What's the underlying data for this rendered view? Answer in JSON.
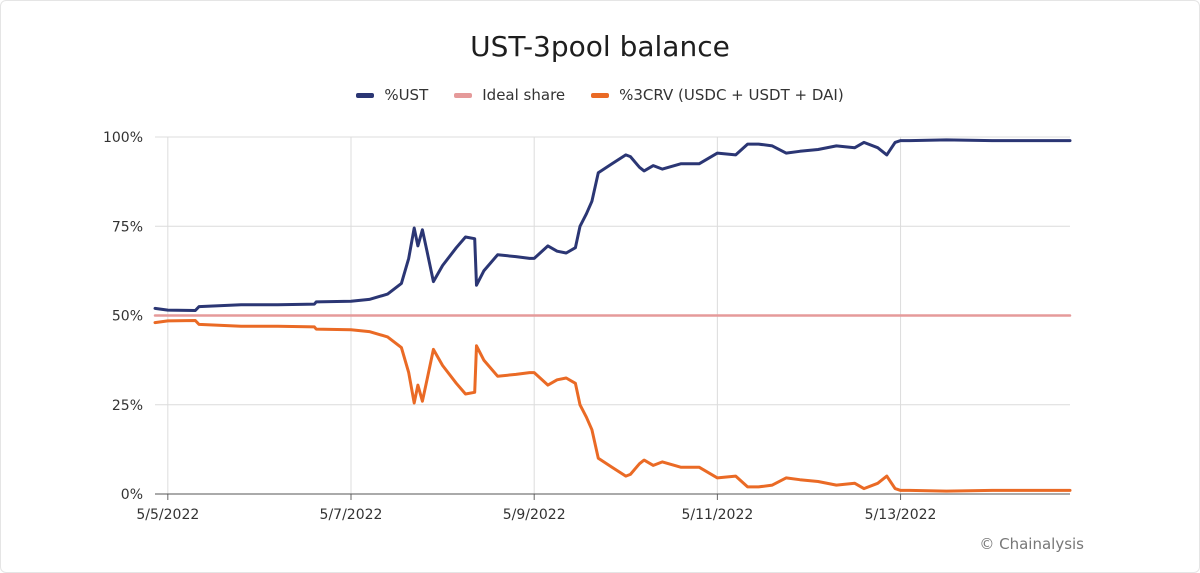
{
  "watermark": "© Chainalysis",
  "colors": {
    "ust": "#2b3674",
    "ideal": "#e59a9a",
    "crv": "#ea6a25",
    "grid": "#dcdcdc"
  },
  "chart_data": {
    "type": "line",
    "title": "UST-3pool balance",
    "xlabel": "",
    "ylabel": "",
    "x_unit": "days since 5/5/2022",
    "xlim": [
      -0.14,
      9.85
    ],
    "ylim": [
      0,
      100
    ],
    "x_ticks": [
      {
        "x": 0,
        "label": "5/5/2022"
      },
      {
        "x": 2,
        "label": "5/7/2022"
      },
      {
        "x": 4,
        "label": "5/9/2022"
      },
      {
        "x": 6,
        "label": "5/11/2022"
      },
      {
        "x": 8,
        "label": "5/13/2022"
      }
    ],
    "y_ticks": [
      {
        "y": 0,
        "label": "0%"
      },
      {
        "y": 25,
        "label": "25%"
      },
      {
        "y": 50,
        "label": "50%"
      },
      {
        "y": 75,
        "label": "75%"
      },
      {
        "y": 100,
        "label": "100%"
      }
    ],
    "grid": true,
    "legend_position": "top-center",
    "series": [
      {
        "name": "%UST",
        "color": "#2b3674",
        "x": [
          -0.3,
          0.0,
          0.3,
          0.34,
          0.8,
          1.2,
          1.6,
          1.62,
          2.0,
          2.2,
          2.4,
          2.55,
          2.63,
          2.69,
          2.73,
          2.78,
          2.83,
          2.9,
          3.0,
          3.15,
          3.25,
          3.35,
          3.37,
          3.45,
          3.6,
          3.8,
          3.95,
          4.0,
          4.15,
          4.25,
          4.35,
          4.45,
          4.5,
          4.57,
          4.63,
          4.7,
          4.85,
          5.0,
          5.05,
          5.15,
          5.2,
          5.3,
          5.4,
          5.6,
          5.8,
          6.0,
          6.2,
          6.33,
          6.45,
          6.6,
          6.75,
          6.9,
          7.1,
          7.3,
          7.5,
          7.6,
          7.75,
          7.85,
          7.94,
          8.0,
          8.1,
          8.5,
          9.0,
          9.5,
          9.85
        ],
        "values": [
          52.0,
          51.5,
          51.4,
          52.5,
          53.0,
          53.0,
          53.2,
          53.8,
          54.0,
          54.5,
          56.0,
          59.0,
          66.0,
          74.5,
          69.5,
          74.0,
          68.0,
          59.5,
          64.0,
          69.0,
          72.0,
          71.5,
          58.5,
          62.5,
          67.0,
          66.5,
          66.0,
          66.0,
          69.5,
          68.0,
          67.5,
          69.0,
          75.0,
          78.5,
          82.0,
          90.0,
          92.5,
          95.0,
          94.5,
          91.5,
          90.5,
          92.0,
          91.0,
          92.5,
          92.5,
          95.5,
          95.0,
          98.0,
          98.0,
          97.5,
          95.5,
          96.0,
          96.5,
          97.5,
          97.0,
          98.5,
          97.0,
          95.0,
          98.5,
          99.0,
          99.0,
          99.2,
          99.0,
          99.0,
          99.0
        ]
      },
      {
        "name": "Ideal share",
        "color": "#e59a9a",
        "x": [
          -0.3,
          9.85
        ],
        "values": [
          50,
          50
        ]
      },
      {
        "name": "%3CRV (USDC + USDT + DAI)",
        "color": "#ea6a25",
        "x": [
          -0.3,
          0.0,
          0.3,
          0.34,
          0.8,
          1.2,
          1.6,
          1.62,
          2.0,
          2.2,
          2.4,
          2.55,
          2.63,
          2.69,
          2.73,
          2.78,
          2.83,
          2.9,
          3.0,
          3.15,
          3.25,
          3.35,
          3.37,
          3.45,
          3.6,
          3.8,
          3.95,
          4.0,
          4.15,
          4.25,
          4.35,
          4.45,
          4.5,
          4.57,
          4.63,
          4.7,
          4.85,
          5.0,
          5.05,
          5.15,
          5.2,
          5.3,
          5.4,
          5.6,
          5.8,
          6.0,
          6.2,
          6.33,
          6.45,
          6.6,
          6.75,
          6.9,
          7.1,
          7.3,
          7.5,
          7.6,
          7.75,
          7.85,
          7.94,
          8.0,
          8.1,
          8.5,
          9.0,
          9.5,
          9.85
        ],
        "values": [
          48.0,
          48.5,
          48.6,
          47.5,
          47.0,
          47.0,
          46.8,
          46.2,
          46.0,
          45.5,
          44.0,
          41.0,
          34.0,
          25.5,
          30.5,
          26.0,
          32.0,
          40.5,
          36.0,
          31.0,
          28.0,
          28.5,
          41.5,
          37.5,
          33.0,
          33.5,
          34.0,
          34.0,
          30.5,
          32.0,
          32.5,
          31.0,
          25.0,
          21.5,
          18.0,
          10.0,
          7.5,
          5.0,
          5.5,
          8.5,
          9.5,
          8.0,
          9.0,
          7.5,
          7.5,
          4.5,
          5.0,
          2.0,
          2.0,
          2.5,
          4.5,
          4.0,
          3.5,
          2.5,
          3.0,
          1.5,
          3.0,
          5.0,
          1.5,
          1.0,
          1.0,
          0.8,
          1.0,
          1.0,
          1.0
        ]
      }
    ]
  }
}
